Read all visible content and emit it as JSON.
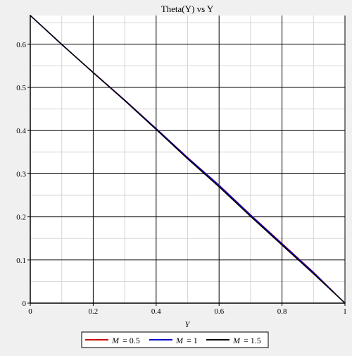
{
  "chart_data": {
    "type": "line",
    "title": "Theta(Y) vs Y",
    "xlabel": "Y",
    "ylabel": "",
    "xlim": [
      0,
      1
    ],
    "ylim": [
      0,
      0.666667
    ],
    "xticks": [
      0,
      0.2,
      0.4,
      0.6,
      0.8,
      1
    ],
    "yticks": [
      0,
      0.1,
      0.2,
      0.3,
      0.4,
      0.5,
      0.6
    ],
    "xtick_labels": [
      "0",
      "0.2",
      "0.4",
      "0.6",
      "0.8",
      "1"
    ],
    "ytick_labels": [
      "0",
      "0.1",
      "0.2",
      "0.3",
      "0.4",
      "0.5",
      "0.6"
    ],
    "grid": true,
    "legend_position": "bottom",
    "x": [
      0,
      0.1,
      0.2,
      0.3,
      0.4,
      0.5,
      0.6,
      0.7,
      0.8,
      0.9,
      1
    ],
    "series": [
      {
        "name": "M = 0.5",
        "legend_symbol": "M",
        "legend_value": "= 0.5",
        "color": "#cc0000",
        "values": [
          0.6667,
          0.5993,
          0.5348,
          0.4708,
          0.4047,
          0.3375,
          0.2735,
          0.2048,
          0.1382,
          0.0717,
          0.0
        ]
      },
      {
        "name": "M = 1",
        "legend_symbol": "M",
        "legend_value": "= 1",
        "color": "#0000cc",
        "values": [
          0.6667,
          0.5993,
          0.5345,
          0.4705,
          0.4043,
          0.337,
          0.2729,
          0.2039,
          0.1372,
          0.0707,
          0.0
        ]
      },
      {
        "name": "M = 1.5",
        "legend_symbol": "M",
        "legend_value": "= 1.5",
        "color": "#000000",
        "values": [
          0.6667,
          0.6,
          0.534,
          0.4695,
          0.4025,
          0.3345,
          0.2695,
          0.201,
          0.1345,
          0.0682,
          0.0
        ]
      }
    ]
  }
}
